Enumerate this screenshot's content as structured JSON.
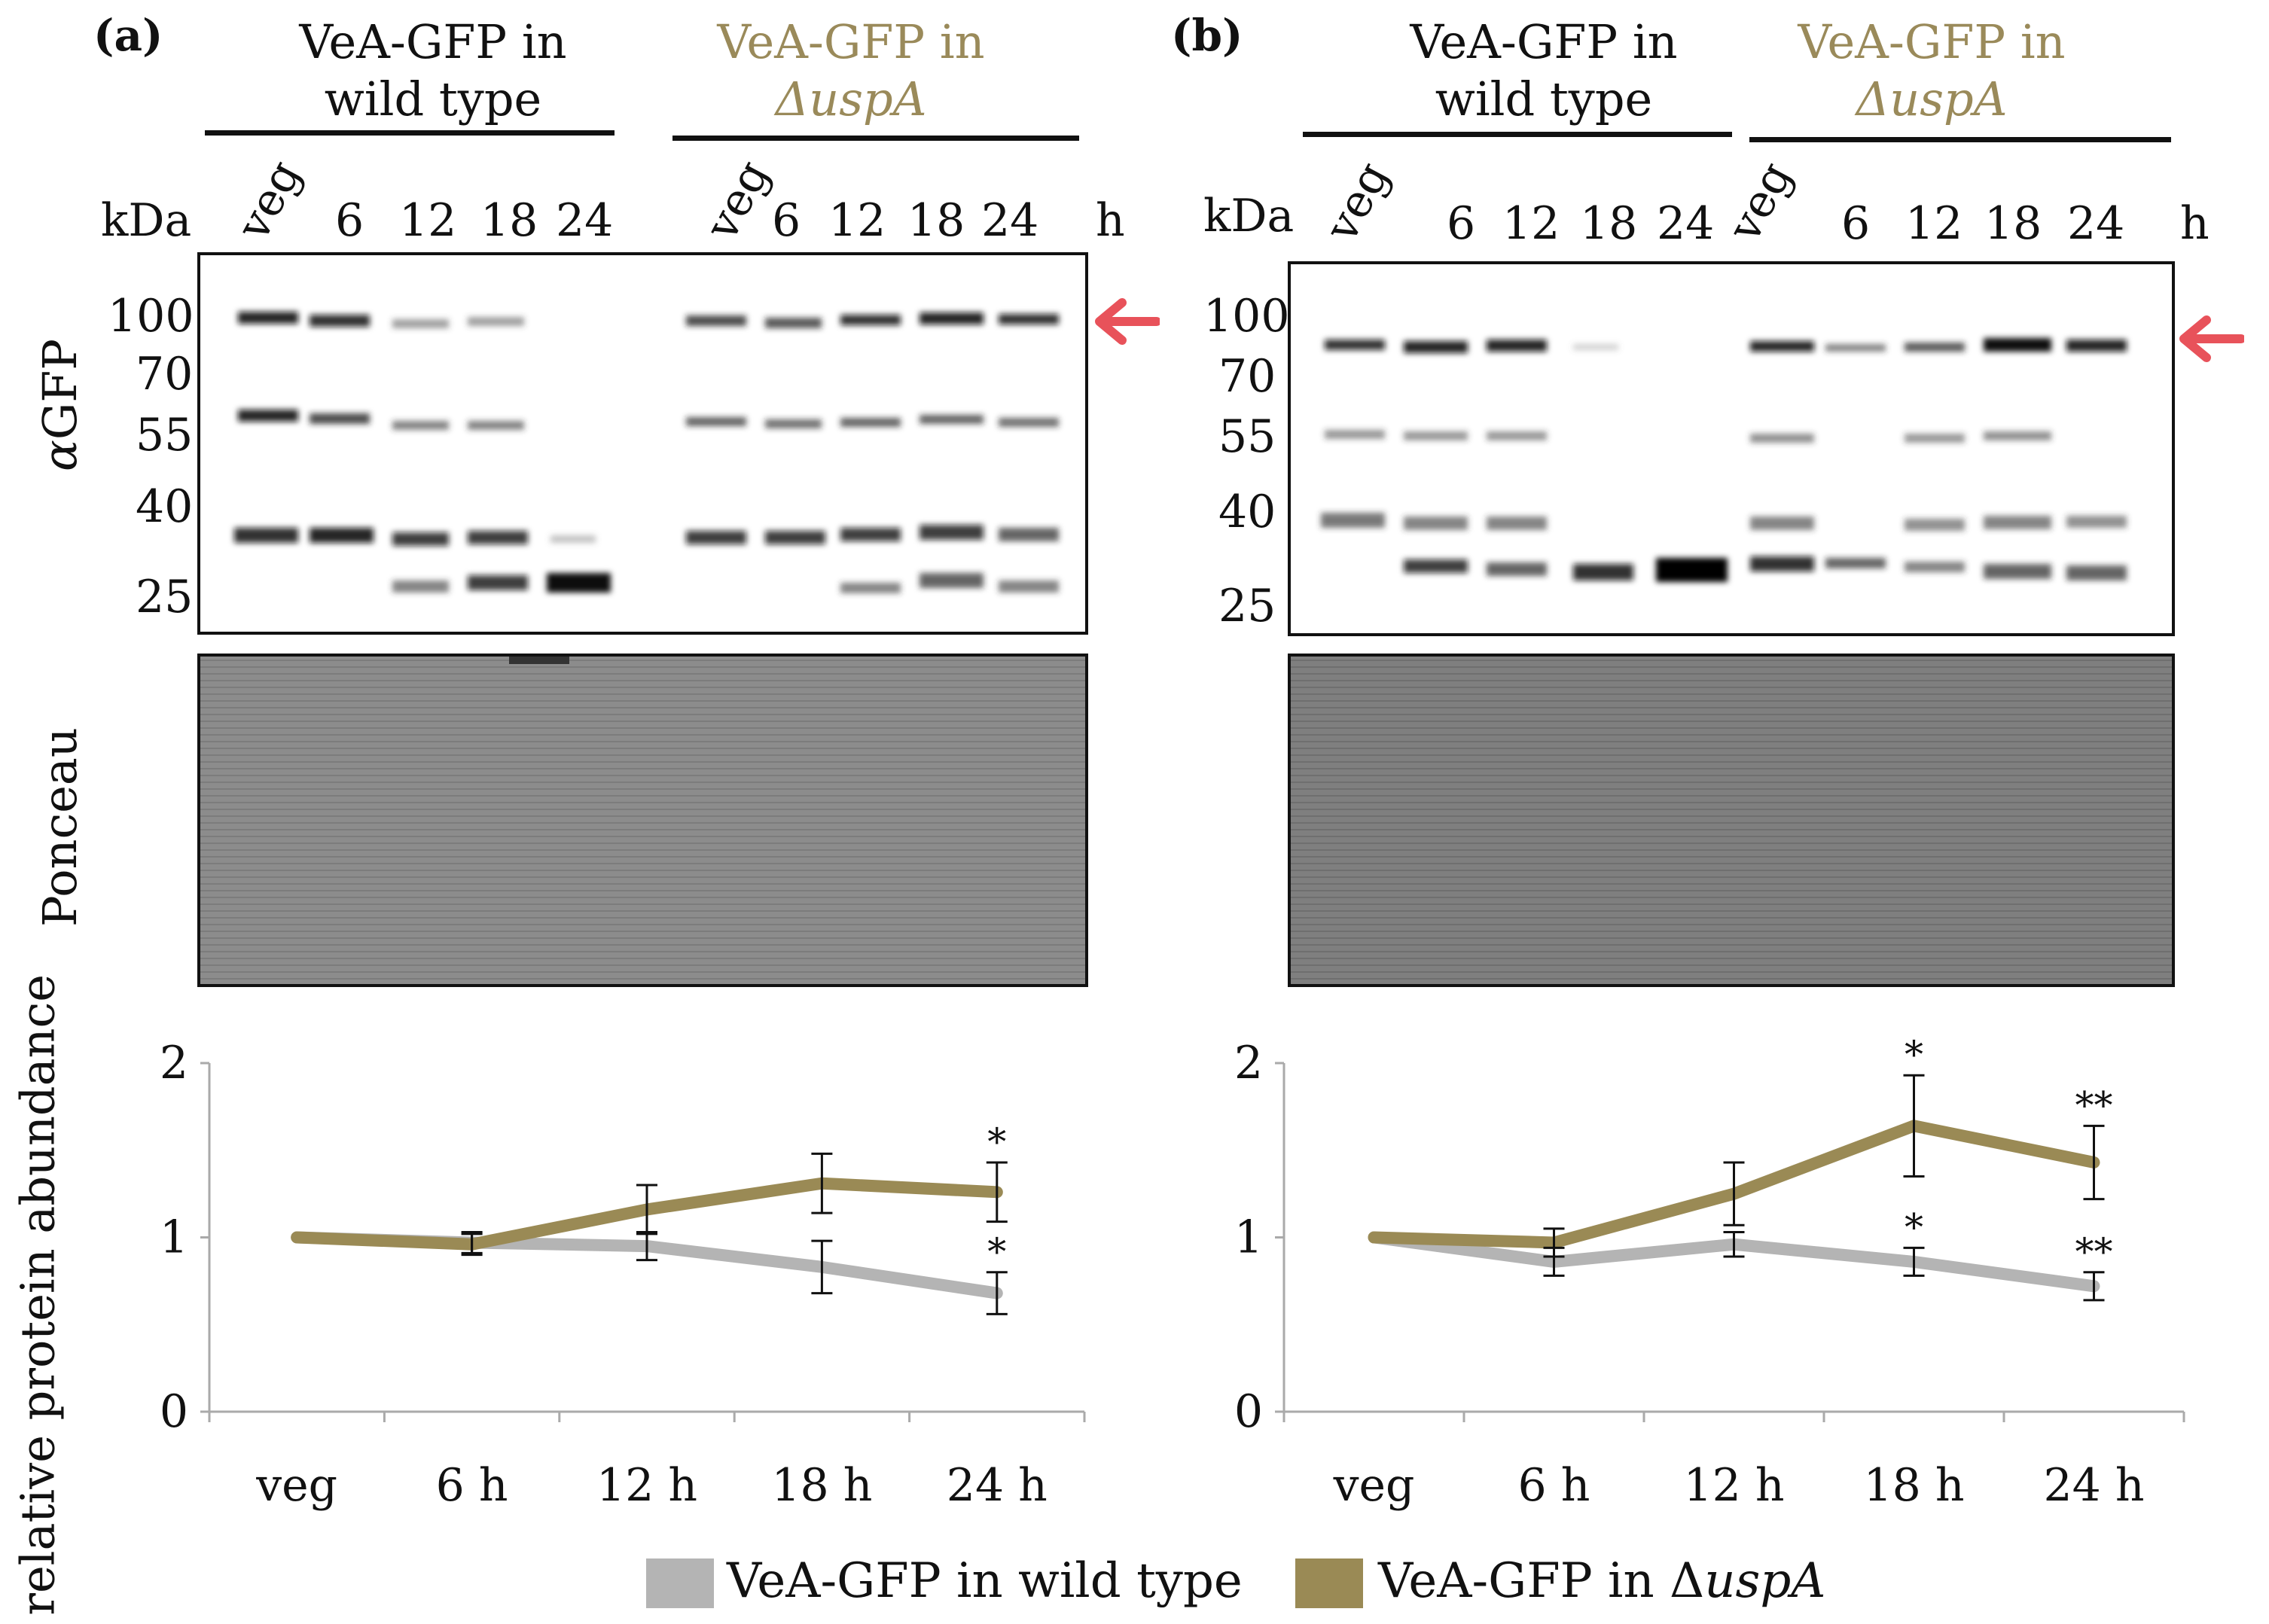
{
  "figure": {
    "panels": [
      {
        "id": "a",
        "label": "(a)",
        "group_wt": "VeA-GFP in wild type",
        "group_wt_l1": "VeA-GFP in",
        "group_wt_l2": "wild type",
        "group_mut_l1": "VeA-GFP in",
        "group_mut_l2": "ΔuspA",
        "kda_label": "kDa",
        "hour_unit": "h",
        "lanes": [
          "veg",
          "6",
          "12",
          "18",
          "24",
          "veg",
          "6",
          "12",
          "18",
          "24"
        ],
        "markers": [
          "100",
          "70",
          "55",
          "40",
          "25"
        ],
        "blot_ylabel": "αGFP",
        "ponceau_label": "Ponceau"
      },
      {
        "id": "b",
        "label": "(b)",
        "group_wt_l1": "VeA-GFP in",
        "group_wt_l2": "wild type",
        "group_mut_l1": "VeA-GFP in",
        "group_mut_l2": "ΔuspA",
        "kda_label": "kDa",
        "hour_unit": "h",
        "lanes": [
          "veg",
          "6",
          "12",
          "18",
          "24",
          "veg",
          "6",
          "12",
          "18",
          "24"
        ],
        "markers": [
          "100",
          "70",
          "55",
          "40",
          "25"
        ]
      }
    ],
    "arrow_color": "#e8525a",
    "colors": {
      "wild_type": "#b4b4b4",
      "mutant": "#9a8a55"
    },
    "legend": {
      "wild_type": "VeA-GFP in wild type",
      "mutant_prefix": "VeA-GFP in Δ",
      "mutant_italic": "uspA"
    }
  },
  "chart_data": [
    {
      "type": "line",
      "title": "(a)",
      "ylabel": "relative protein abundance",
      "xlabel": "",
      "categories": [
        "veg",
        "6 h",
        "12 h",
        "18 h",
        "24 h"
      ],
      "ylim": [
        0,
        2
      ],
      "yticks": [
        "0",
        "1",
        "2"
      ],
      "series": [
        {
          "name": "VeA-GFP in wild type",
          "values": [
            1.0,
            0.97,
            0.95,
            0.83,
            0.68
          ],
          "errors": [
            0.0,
            0.06,
            0.08,
            0.15,
            0.12
          ],
          "stars": [
            "",
            "",
            "",
            "",
            "*"
          ]
        },
        {
          "name": "VeA-GFP in ΔuspA",
          "values": [
            1.0,
            0.96,
            1.16,
            1.31,
            1.26
          ],
          "errors": [
            0.0,
            0.06,
            0.14,
            0.17,
            0.17
          ],
          "stars": [
            "",
            "",
            "",
            "",
            "*"
          ]
        }
      ]
    },
    {
      "type": "line",
      "title": "(b)",
      "ylabel": "",
      "xlabel": "",
      "categories": [
        "veg",
        "6 h",
        "12 h",
        "18 h",
        "24 h"
      ],
      "ylim": [
        0,
        2
      ],
      "yticks": [
        "0",
        "1",
        "2"
      ],
      "series": [
        {
          "name": "VeA-GFP in wild type",
          "values": [
            1.0,
            0.86,
            0.96,
            0.86,
            0.72
          ],
          "errors": [
            0.0,
            0.08,
            0.07,
            0.08,
            0.08
          ],
          "stars": [
            "",
            "",
            "",
            "*",
            "**"
          ]
        },
        {
          "name": "VeA-GFP in ΔuspA",
          "values": [
            1.0,
            0.97,
            1.25,
            1.64,
            1.43
          ],
          "errors": [
            0.0,
            0.08,
            0.18,
            0.29,
            0.21
          ],
          "stars": [
            "",
            "",
            "",
            "*",
            "**"
          ]
        }
      ]
    }
  ]
}
